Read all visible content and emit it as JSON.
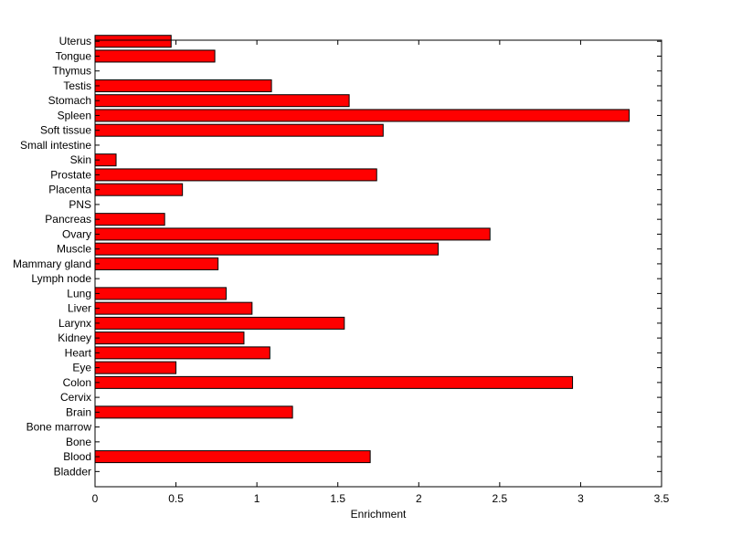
{
  "chart_data": {
    "type": "bar",
    "orientation": "horizontal",
    "categories": [
      "Bladder",
      "Blood",
      "Bone",
      "Bone marrow",
      "Brain",
      "Cervix",
      "Colon",
      "Eye",
      "Heart",
      "Kidney",
      "Larynx",
      "Liver",
      "Lung",
      "Lymph node",
      "Mammary gland",
      "Muscle",
      "Ovary",
      "Pancreas",
      "PNS",
      "Placenta",
      "Prostate",
      "Skin",
      "Small intestine",
      "Soft tissue",
      "Spleen",
      "Stomach",
      "Testis",
      "Thymus",
      "Tongue",
      "Uterus"
    ],
    "values": [
      0,
      1.7,
      0,
      0,
      1.22,
      0,
      2.95,
      0.5,
      1.08,
      0.92,
      1.54,
      0.97,
      0.81,
      0,
      0.76,
      2.12,
      2.44,
      0.43,
      0,
      0.54,
      1.74,
      0.13,
      0,
      1.78,
      3.3,
      1.57,
      1.09,
      0,
      0.74,
      0.47
    ],
    "xlabel": "Enrichment",
    "ylabel": "",
    "title": "",
    "xlim": [
      0,
      3.5
    ],
    "xticks": [
      0,
      0.5,
      1,
      1.5,
      2,
      2.5,
      3,
      3.5
    ],
    "xtick_labels": [
      "0",
      "0.5",
      "1",
      "1.5",
      "2",
      "2.5",
      "3",
      "3.5"
    ],
    "grid": false,
    "bar_color": "#ff0000",
    "edge_color": "#000000"
  }
}
